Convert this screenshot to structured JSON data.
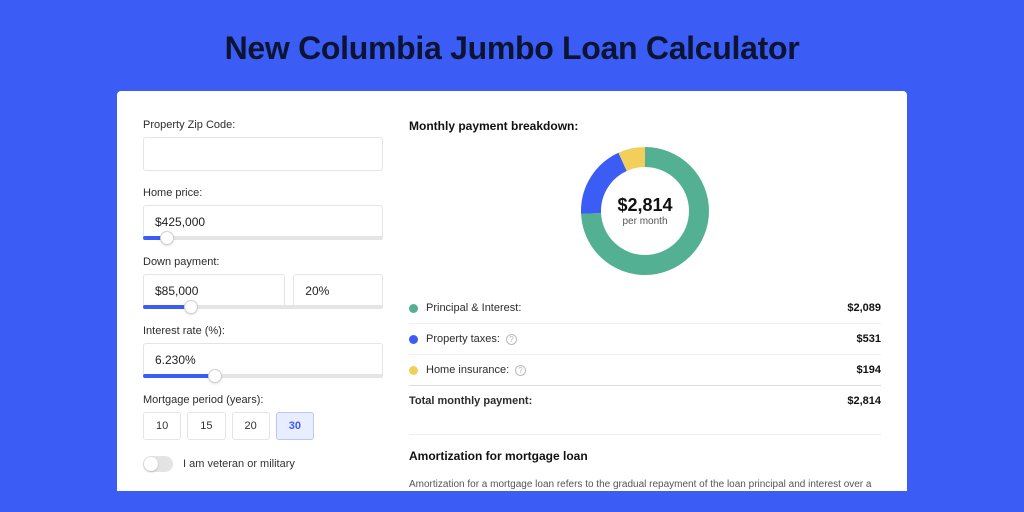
{
  "page": {
    "title": "New Columbia Jumbo Loan Calculator",
    "background_color": "#3b5cf5",
    "card_background": "#ffffff"
  },
  "form": {
    "zip": {
      "label": "Property Zip Code:",
      "value": ""
    },
    "home_price": {
      "label": "Home price:",
      "value": "$425,000",
      "slider_pct": 10
    },
    "down_payment": {
      "label": "Down payment:",
      "amount": "$85,000",
      "percent": "20%",
      "slider_pct": 20
    },
    "interest_rate": {
      "label": "Interest rate (%):",
      "value": "6.230%",
      "slider_pct": 30
    },
    "mortgage_period": {
      "label": "Mortgage period (years):",
      "options": [
        "10",
        "15",
        "20",
        "30"
      ],
      "selected": "30"
    },
    "veteran_toggle": {
      "label": "I am veteran or military",
      "on": false
    }
  },
  "breakdown": {
    "heading": "Monthly payment breakdown:",
    "donut": {
      "amount": "$2,814",
      "subtitle": "per month",
      "slices": [
        {
          "key": "principal_interest",
          "value": 2089,
          "percent": 74.2,
          "color": "#54b093"
        },
        {
          "key": "property_taxes",
          "value": 531,
          "percent": 18.9,
          "color": "#3b5cf5"
        },
        {
          "key": "home_insurance",
          "value": 194,
          "percent": 6.9,
          "color": "#f2cf5b"
        }
      ],
      "ring_thickness": 20,
      "background": "#ffffff"
    },
    "legend": [
      {
        "label": "Principal & Interest:",
        "value": "$2,089",
        "color": "#54b093",
        "info": false
      },
      {
        "label": "Property taxes:",
        "value": "$531",
        "color": "#3b5cf5",
        "info": true
      },
      {
        "label": "Home insurance:",
        "value": "$194",
        "color": "#f2cf5b",
        "info": true
      }
    ],
    "total": {
      "label": "Total monthly payment:",
      "value": "$2,814"
    }
  },
  "amortization": {
    "heading": "Amortization for mortgage loan",
    "text": "Amortization for a mortgage loan refers to the gradual repayment of the loan principal and interest over a specified"
  },
  "style": {
    "accent": "#3b5cf5",
    "text_primary": "#111111",
    "text_secondary": "#555555",
    "border": "#e4e4e4"
  }
}
